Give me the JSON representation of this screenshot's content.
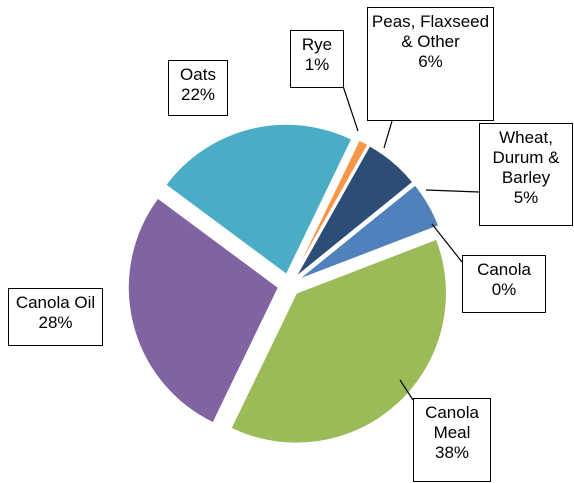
{
  "chart_data": {
    "type": "pie",
    "categories": [
      "Canola Meal",
      "Canola Oil",
      "Oats",
      "Rye",
      "Peas, Flaxseed & Other",
      "Wheat, Durum & Barley",
      "Canola"
    ],
    "values": [
      38,
      28,
      22,
      1,
      6,
      5,
      0
    ],
    "value_labels": [
      "38%",
      "28%",
      "22%",
      "1%",
      "6%",
      "5%",
      "0%"
    ],
    "colors": [
      "#9bbb59",
      "#8064a2",
      "#4bacc6",
      "#f79646",
      "#2c4d75",
      "#4f81bd",
      "#c0504d"
    ]
  }
}
